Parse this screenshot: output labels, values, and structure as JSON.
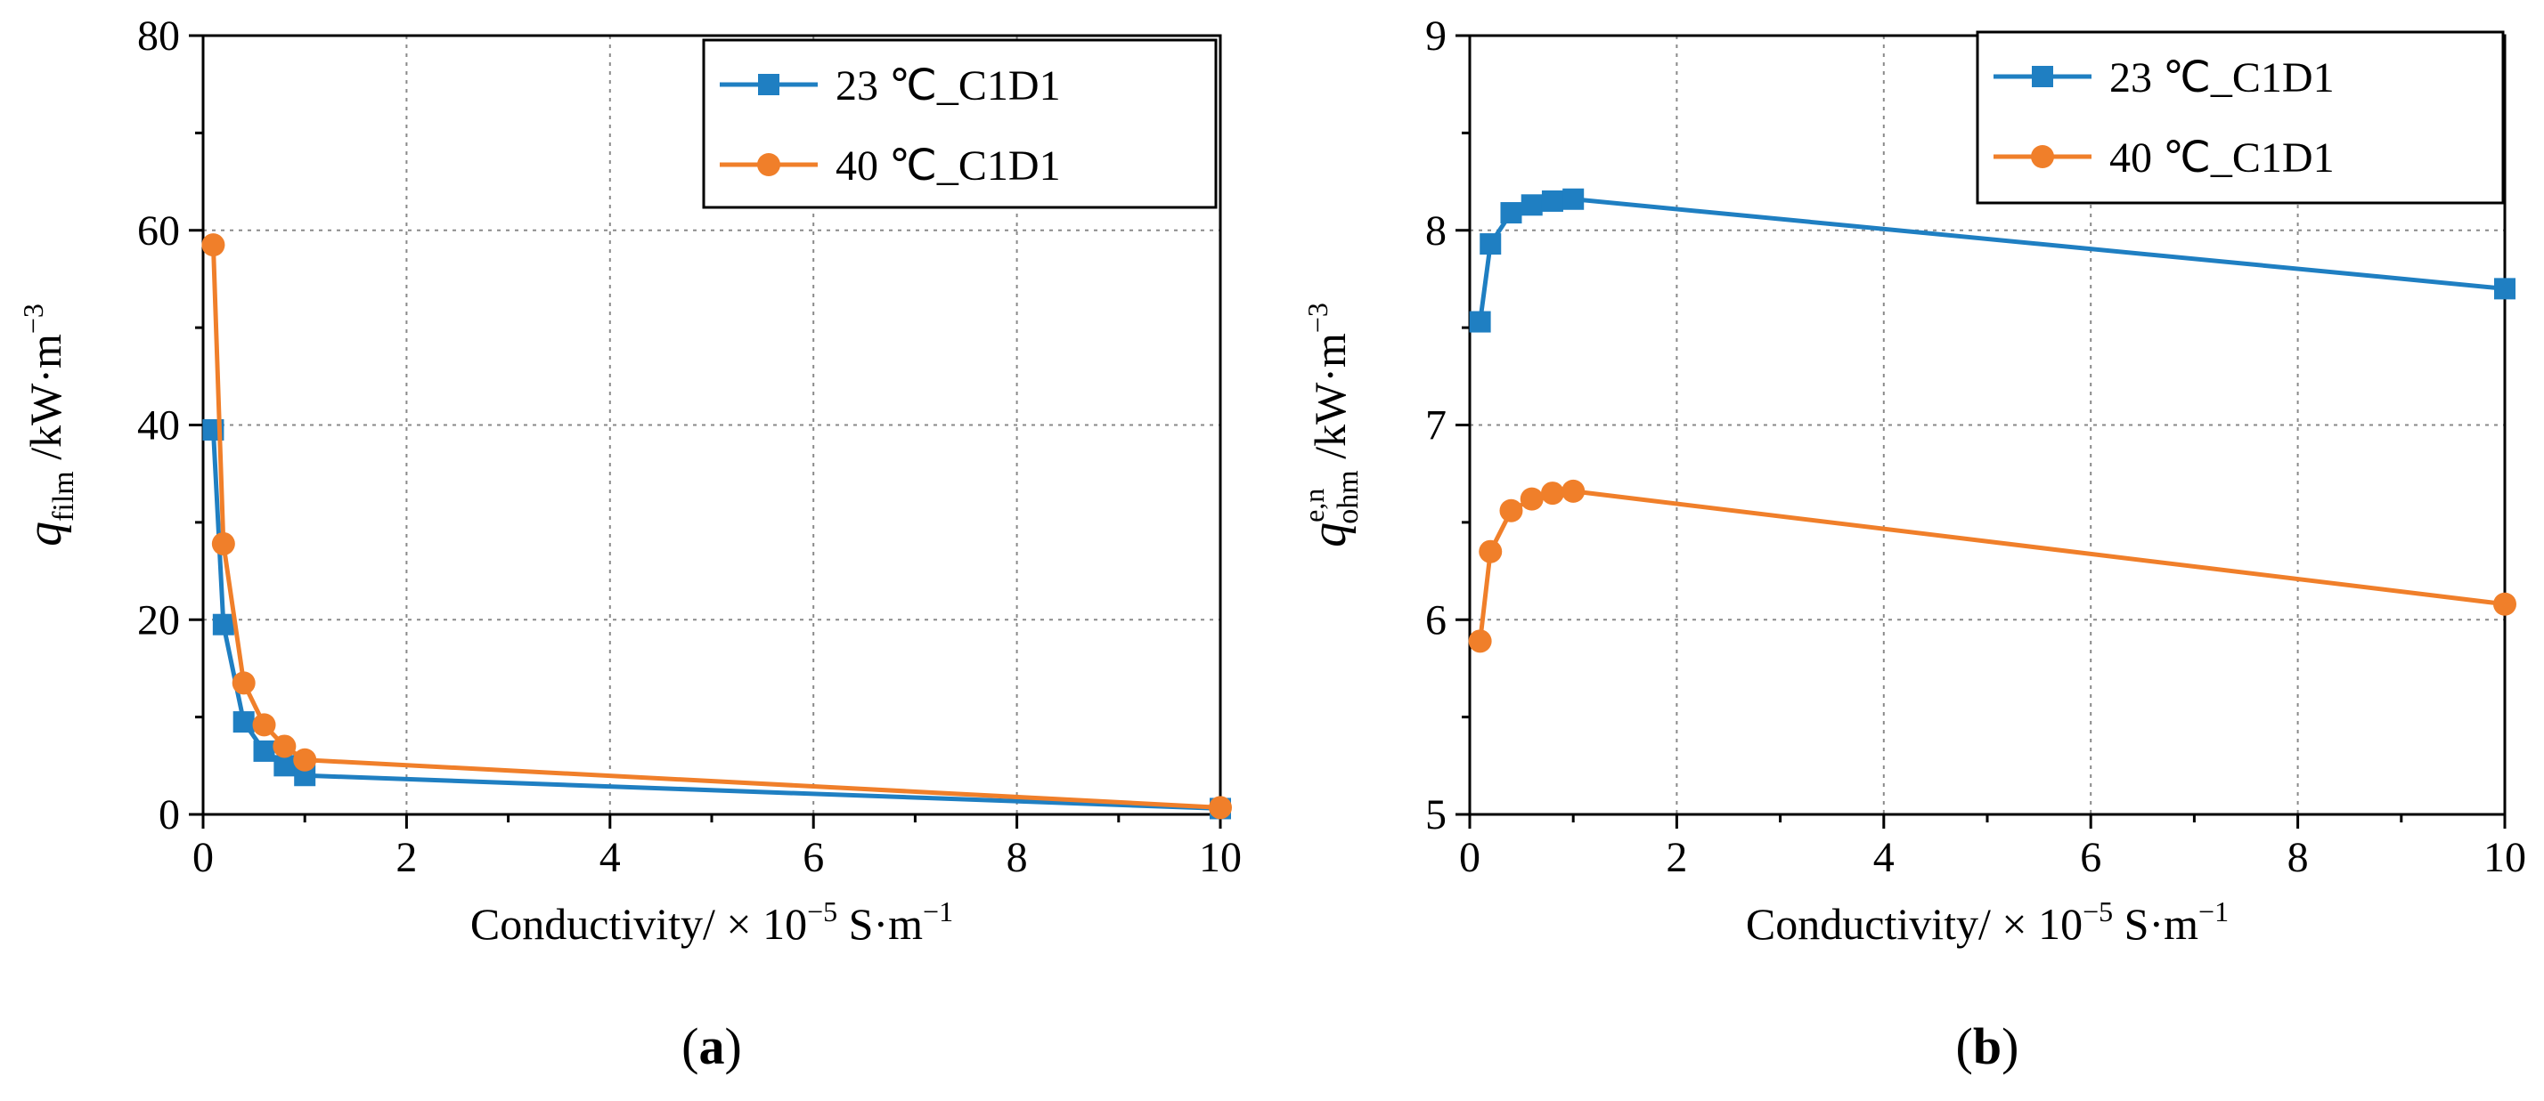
{
  "chart_data": [
    {
      "type": "line",
      "panel_label": "a",
      "xlabel": "Conductivity/ × 10",
      "xlabel_exp": "−5",
      "xlabel_unit": " S·m",
      "xlabel_unit_exp": "−1",
      "ylabel": "q",
      "ylabel_sub": "film",
      "ylabel_unit": " /kW·m",
      "ylabel_unit_exp": "−3",
      "xlim": [
        0,
        10
      ],
      "ylim": [
        0,
        80
      ],
      "xticks": [
        0,
        2,
        4,
        6,
        8,
        10
      ],
      "yticks": [
        0,
        20,
        40,
        60,
        80
      ],
      "xtick_labels": [
        "0",
        "2",
        "4",
        "6",
        "8",
        "10"
      ],
      "ytick_labels": [
        "0",
        "20",
        "40",
        "60",
        "80"
      ],
      "grid": true,
      "legend_position": "top-right",
      "series": [
        {
          "name": "23 ℃_C1D1",
          "color": "#1f7fc2",
          "marker": "square",
          "x": [
            0.1,
            0.2,
            0.4,
            0.6,
            0.8,
            1.0,
            10
          ],
          "y": [
            39.5,
            19.5,
            9.5,
            6.5,
            5.0,
            4.0,
            0.6
          ]
        },
        {
          "name": "40 ℃_C1D1",
          "color": "#f07f2a",
          "marker": "circle",
          "x": [
            0.1,
            0.2,
            0.4,
            0.6,
            0.8,
            1.0,
            10
          ],
          "y": [
            58.5,
            27.8,
            13.5,
            9.2,
            7.0,
            5.6,
            0.7
          ]
        }
      ]
    },
    {
      "type": "line",
      "panel_label": "b",
      "xlabel": "Conductivity/ × 10",
      "xlabel_exp": "−5",
      "xlabel_unit": " S·m",
      "xlabel_unit_exp": "−1",
      "ylabel": "q",
      "ylabel_sub": "ohm",
      "ylabel_sup": "e,n",
      "ylabel_unit": " /kW·m",
      "ylabel_unit_exp": "−3",
      "xlim": [
        0,
        10
      ],
      "ylim": [
        5,
        9
      ],
      "xticks": [
        0,
        2,
        4,
        6,
        8,
        10
      ],
      "yticks": [
        5,
        6,
        7,
        8,
        9
      ],
      "xtick_labels": [
        "0",
        "2",
        "4",
        "6",
        "8",
        "10"
      ],
      "ytick_labels": [
        "5",
        "6",
        "7",
        "8",
        "9"
      ],
      "grid": true,
      "legend_position": "top-right",
      "series": [
        {
          "name": "23 ℃_C1D1",
          "color": "#1f7fc2",
          "marker": "square",
          "x": [
            0.1,
            0.2,
            0.4,
            0.6,
            0.8,
            1.0,
            10
          ],
          "y": [
            7.53,
            7.93,
            8.09,
            8.13,
            8.15,
            8.16,
            7.7
          ]
        },
        {
          "name": "40 ℃_C1D1",
          "color": "#f07f2a",
          "marker": "circle",
          "x": [
            0.1,
            0.2,
            0.4,
            0.6,
            0.8,
            1.0,
            10
          ],
          "y": [
            5.89,
            6.35,
            6.56,
            6.62,
            6.65,
            6.66,
            6.08
          ]
        }
      ]
    }
  ]
}
